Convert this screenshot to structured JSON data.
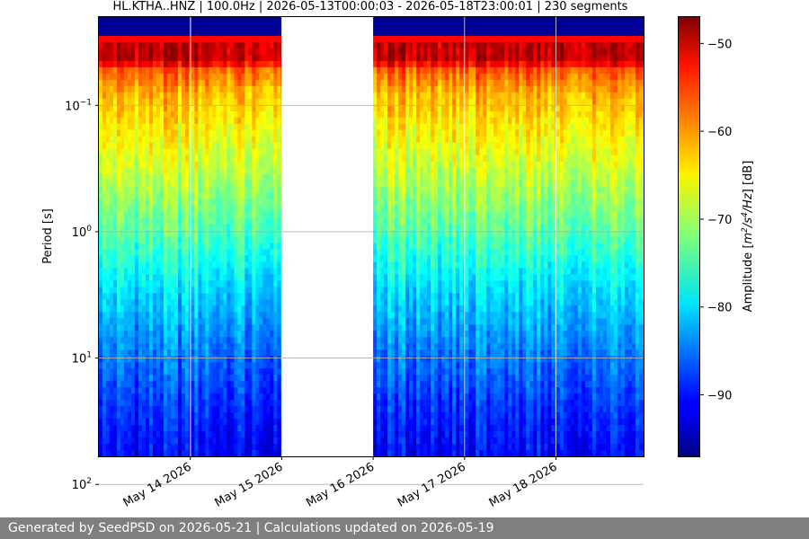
{
  "chart_data": {
    "type": "heatmap",
    "title": "HL.KTHA..HNZ | 100.0Hz | 2026-05-13T00:00:03 - 2026-05-18T23:00:01 | 230 segments",
    "ylabel": "Period [s]",
    "yscale": "log",
    "y_inverted": true,
    "ylim": [
      0.02,
      60
    ],
    "y_ticks": [
      {
        "value": 0.1,
        "base": "10",
        "exp": "−1"
      },
      {
        "value": 1,
        "base": "10",
        "exp": "0"
      },
      {
        "value": 10,
        "base": "10",
        "exp": "1"
      },
      {
        "value": 100,
        "base": "10",
        "exp": "2"
      }
    ],
    "x_range": [
      "2026-05-13T00:00:03",
      "2026-05-18T23:00:01"
    ],
    "x_ticks": [
      "May 14 2026",
      "May 15 2026",
      "May 16 2026",
      "May 17 2026",
      "May 18 2026"
    ],
    "x_tick_dates": [
      "2026-05-14",
      "2026-05-15",
      "2026-05-16",
      "2026-05-17",
      "2026-05-18"
    ],
    "grid": "y",
    "data_blocks": [
      {
        "start": "2026-05-13",
        "end": "2026-05-13T23:50"
      },
      {
        "start": "2026-05-14T00:10",
        "end": "2026-05-14T23:50"
      },
      {
        "start": "2026-05-16T00:00",
        "end": "2026-05-16T23:50"
      },
      {
        "start": "2026-05-17T00:05",
        "end": "2026-05-17T23:50"
      },
      {
        "start": "2026-05-18T00:05",
        "end": "2026-05-18T23:00"
      }
    ],
    "colorbar": {
      "label": "Amplitude [m²/s⁴/Hz] [dB]",
      "label_base": "Amplitude [",
      "label_m": "m",
      "label_m_exp": "2",
      "label_s": "/s",
      "label_s_exp": "4",
      "label_hz": "/Hz",
      "label_end": "] [dB]",
      "min": -97,
      "max": -47,
      "ticks": [
        -50,
        -60,
        -70,
        -80,
        -90
      ],
      "tick_labels": [
        "−50",
        "−60",
        "−70",
        "−80",
        "−90"
      ],
      "colormap": "jet"
    }
  },
  "footer": {
    "text": "Generated by SeedPSD on 2026-05-21 | Calculations updated on 2026-05-19"
  }
}
